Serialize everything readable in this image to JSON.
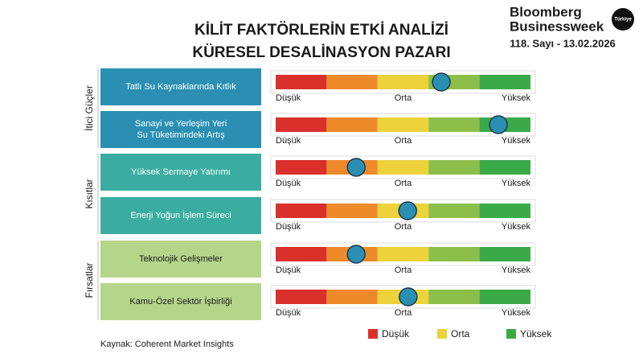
{
  "brand": {
    "name": [
      "Bloomberg",
      "Businessweek"
    ],
    "edition": "Türkiye",
    "issue": "118. Sayı - 13.02.2026"
  },
  "chart_data": {
    "type": "impact",
    "title": [
      "KİLİT FAKTÖRLERİN ETKİ ANALİZİ",
      "KÜRESEL DESALİNASYON PAZARI"
    ],
    "xlim": [
      0,
      5
    ],
    "xticks": [
      {
        "value": 0,
        "label": "Düşük"
      },
      {
        "value": 2.5,
        "label": "Orta"
      },
      {
        "value": 5,
        "label": "Yüksek"
      }
    ],
    "segment_colors": [
      "#d9302c",
      "#ef8a2b",
      "#ecd23b",
      "#8cbf4a",
      "#3aaa49"
    ],
    "marker_color": "#2b8fb3",
    "groups": [
      {
        "name": "İtici Güçler",
        "color": "#2b8fb3",
        "text_color": "#ffffff",
        "categories": [
          [
            "Tatlı Su Kaynaklarında Kıtlık"
          ],
          [
            "Sanayi ve Yerleşim Yeri",
            "Su Tüketimindeki Artış"
          ]
        ],
        "values": [
          3.25,
          4.37
        ]
      },
      {
        "name": "Kısıtlar",
        "color": "#3aada0",
        "text_color": "#ffffff",
        "categories": [
          [
            "Yüksek Sermaye Yatırımı"
          ],
          [
            "Enerji Yoğun İşlem Süreci"
          ]
        ],
        "values": [
          1.58,
          2.59
        ]
      },
      {
        "name": "Fırsatlar",
        "color": "#b5d68a",
        "text_color": "#1a1a1a",
        "categories": [
          [
            "Teknolojik Gelişmeler"
          ],
          [
            "Kamu-Özel Sektör İşbirliği"
          ]
        ],
        "values": [
          1.58,
          2.6
        ]
      }
    ],
    "legend": [
      {
        "name": "Düşük",
        "color": "#d9302c"
      },
      {
        "name": "Orta",
        "color": "#ecd23b"
      },
      {
        "name": "Yüksek",
        "color": "#3aaa49"
      }
    ],
    "source": "Kaynak: Coherent Market Insights"
  }
}
